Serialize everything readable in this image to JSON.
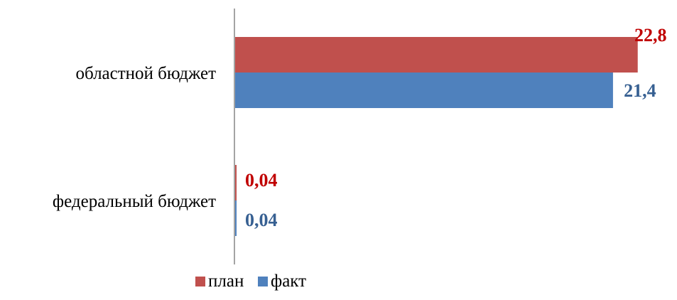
{
  "chart_data": {
    "type": "bar",
    "orientation": "horizontal",
    "title": "",
    "categories": [
      "областной бюджет",
      "федеральный бюджет"
    ],
    "series": [
      {
        "name": "план",
        "color": "#C0504D",
        "label_color": "#C00000",
        "values": [
          22.8,
          0.04
        ],
        "labels": [
          "22,8",
          "0,04"
        ]
      },
      {
        "name": "факт",
        "color": "#4F81BD",
        "label_color": "#376092",
        "values": [
          21.4,
          0.04
        ],
        "labels": [
          "21,4",
          "0,04"
        ]
      }
    ],
    "xlim": [
      0,
      24.3
    ],
    "grid": false,
    "legend_position": "bottom"
  }
}
